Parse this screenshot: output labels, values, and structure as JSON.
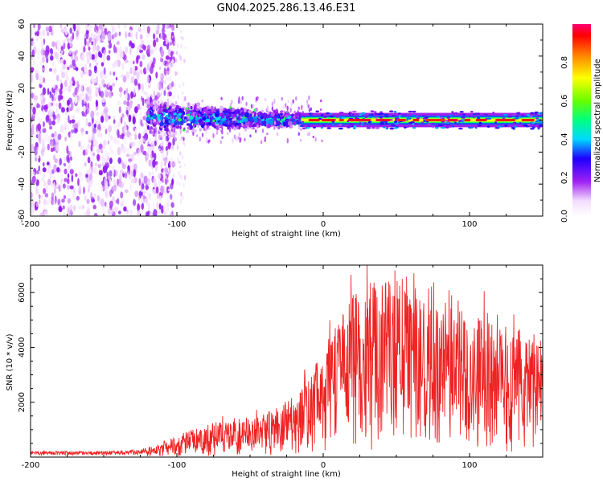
{
  "title": "GN04.2025.286.13.46.E31",
  "colors": {
    "snr_line": "#ee2222",
    "frame": "#000000"
  },
  "chart_data": [
    {
      "type": "heatmap",
      "xlabel": "Height of straight line (km)",
      "ylabel": "Frequency (Hz)",
      "xlim": [
        -200,
        150
      ],
      "ylim": [
        -60,
        60
      ],
      "xticks": [
        -200,
        -100,
        0,
        100
      ],
      "yticks": [
        -60,
        -40,
        -20,
        0,
        20,
        40,
        60
      ],
      "colorbar": {
        "label": "Normalized spectral amplitude",
        "range": [
          0,
          1
        ],
        "ticks": [
          "0.0",
          "0.2",
          "0.4",
          "0.6",
          "0.8"
        ]
      },
      "features": [
        {
          "x_range": [
            -200,
            -110
          ],
          "y_range": [
            -60,
            60
          ],
          "amplitude": 0.05,
          "kind": "broadband noise"
        },
        {
          "x_range": [
            -120,
            -15
          ],
          "center_hz": 2,
          "half_width_hz": 8,
          "amplitude": 0.45,
          "kind": "fluctuating echo"
        },
        {
          "x_range": [
            -15,
            150
          ],
          "center_hz": 0,
          "half_width_hz": 2,
          "amplitude": 0.95,
          "kind": "narrow echo"
        }
      ]
    },
    {
      "type": "line",
      "xlabel": "Height of straight line (km)",
      "ylabel": "SNR (10 * v/v)",
      "xlim": [
        -200,
        150
      ],
      "ylim": [
        0,
        7000
      ],
      "xticks": [
        -200,
        -100,
        0,
        100
      ],
      "yticks": [
        2000,
        4000,
        6000
      ],
      "envelope": {
        "x": [
          -200,
          -150,
          -125,
          -110,
          -90,
          -70,
          -50,
          -30,
          -15,
          0,
          10,
          20,
          30,
          40,
          50,
          60,
          70,
          80,
          90,
          100,
          110,
          120,
          130,
          140,
          150
        ],
        "y": [
          150,
          150,
          180,
          350,
          650,
          850,
          950,
          1150,
          1700,
          2600,
          3200,
          3900,
          4100,
          4300,
          4000,
          4200,
          3600,
          3700,
          3500,
          3400,
          3200,
          3100,
          3050,
          3000,
          3000
        ]
      },
      "peaks": [
        {
          "x": 30,
          "y": 7000
        },
        {
          "x": 62,
          "y": 6700
        },
        {
          "x": 22,
          "y": 5800
        },
        {
          "x": 54,
          "y": 6500
        },
        {
          "x": 110,
          "y": 6050
        }
      ]
    }
  ]
}
